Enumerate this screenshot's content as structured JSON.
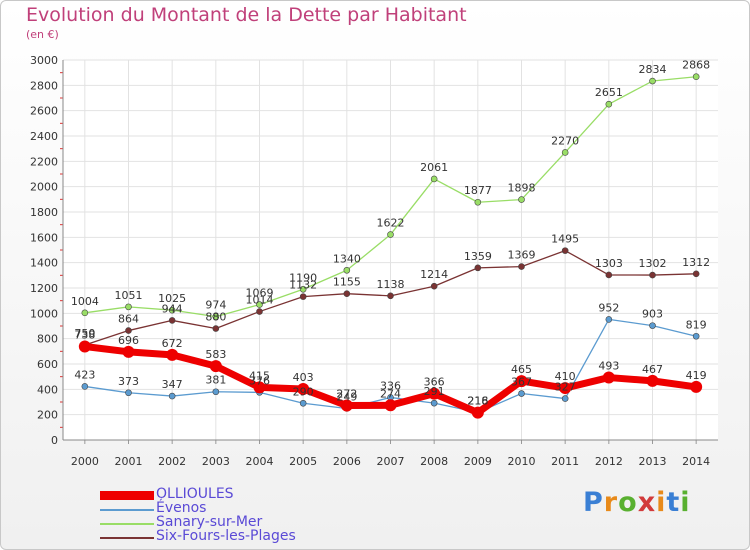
{
  "header": {
    "title": "Evolution du Montant de la Dette par Habitant",
    "subtitle": "(en €)"
  },
  "logo": {
    "text": "Proxiti",
    "colors": [
      "#3a7fd4",
      "#e88a1a",
      "#59b030",
      "#d23a3a",
      "#e88a1a",
      "#3a7fd4",
      "#59b030"
    ]
  },
  "chart_data": {
    "type": "line",
    "x": [
      "2000",
      "2001",
      "2002",
      "2003",
      "2004",
      "2005",
      "2006",
      "2007",
      "2008",
      "2009",
      "2010",
      "2011",
      "2012",
      "2013",
      "2014"
    ],
    "ylim": [
      0,
      3000
    ],
    "yticks": [
      "0",
      "200",
      "400",
      "600",
      "800",
      "1000",
      "1200",
      "1400",
      "1600",
      "1800",
      "2000",
      "2200",
      "2400",
      "2600",
      "2800",
      "3000"
    ],
    "grid": true,
    "legend_position": "bottom-left",
    "series": [
      {
        "name": "OLLIOULES",
        "color": "#ee0000",
        "highlight": true,
        "values": [
          738,
          696,
          672,
          583,
          415,
          403,
          272,
          274,
          366,
          216,
          465,
          410,
          493,
          467,
          419
        ],
        "labels": [
          "738",
          "696",
          "672",
          "583",
          "415",
          "403",
          "272",
          "274",
          "366",
          "216",
          "465",
          "410",
          "493",
          "467",
          "419"
        ]
      },
      {
        "name": "Évenos",
        "color": "#5b9bd0",
        "values": [
          423,
          373,
          347,
          381,
          376,
          290,
          249,
          336,
          291,
          218,
          367,
          327,
          952,
          903,
          819
        ],
        "labels": [
          "423",
          "373",
          "347",
          "381",
          "376",
          "290",
          "249",
          "336",
          "291",
          "218",
          "367",
          "327",
          "952",
          "903",
          "819"
        ]
      },
      {
        "name": "Sanary-sur-Mer",
        "color": "#99dd66",
        "values": [
          1004,
          1051,
          1025,
          974,
          1069,
          1190,
          1340,
          1622,
          2061,
          1877,
          1898,
          2270,
          2651,
          2834,
          2868
        ],
        "labels": [
          "1004",
          "1051",
          "1025",
          "974",
          "1069",
          "1190",
          "1340",
          "1622",
          "2061",
          "1877",
          "1898",
          "2270",
          "2651",
          "2834",
          "2868"
        ]
      },
      {
        "name": "Six-Fours-les-Plages",
        "color": "#7a3333",
        "values": [
          750,
          864,
          944,
          880,
          1014,
          1132,
          1155,
          1138,
          1214,
          1359,
          1369,
          1495,
          1303,
          1302,
          1312
        ],
        "labels": [
          "750",
          "864",
          "944",
          "880",
          "1014",
          "1132",
          "1155",
          "1138",
          "1214",
          "1359",
          "1369",
          "1495",
          "1303",
          "1302",
          "1312"
        ]
      }
    ]
  }
}
